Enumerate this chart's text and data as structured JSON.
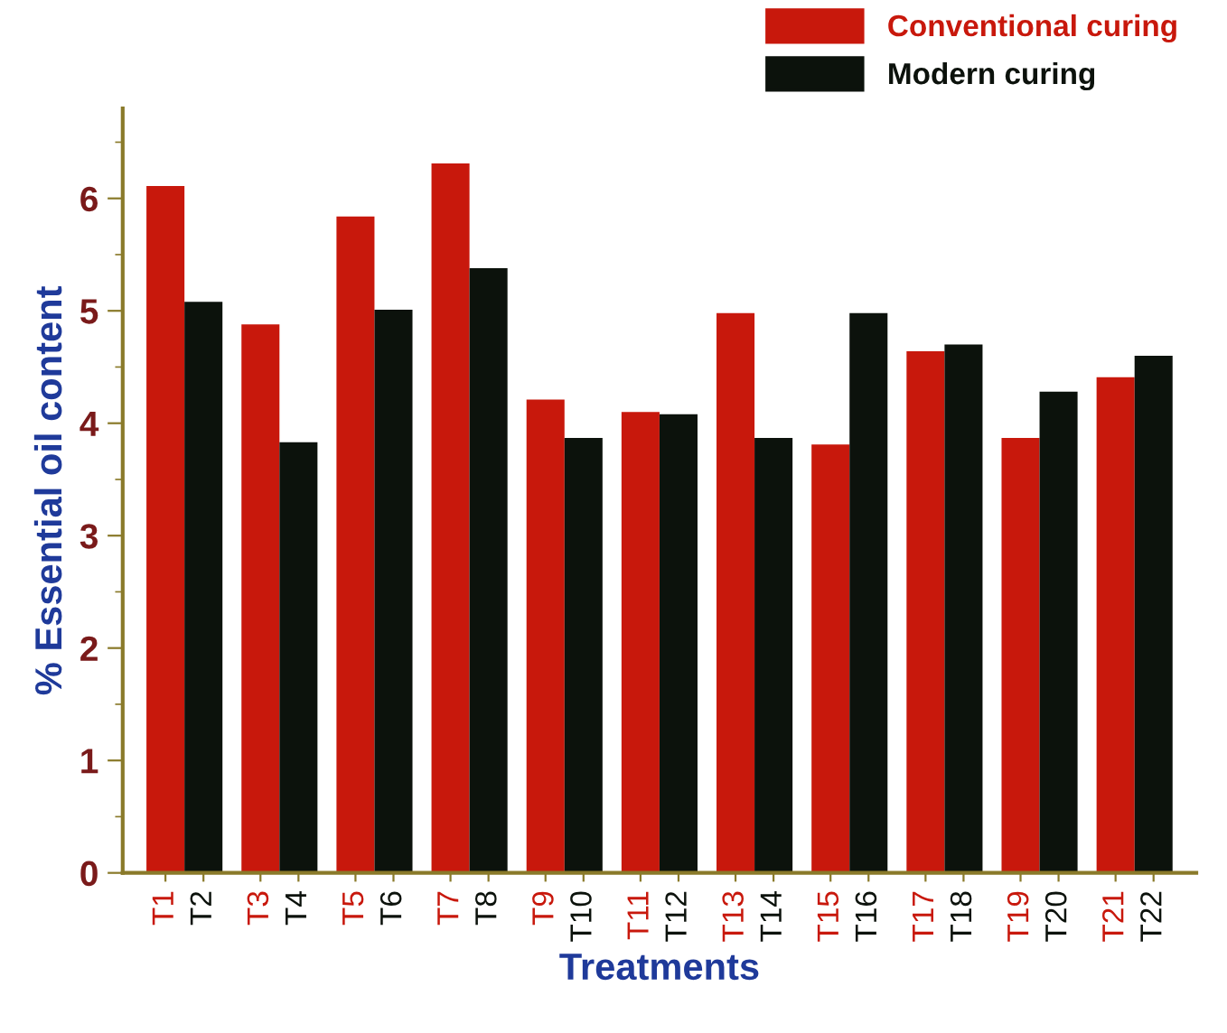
{
  "chart_data": {
    "type": "bar",
    "xlabel": "Treatments",
    "ylabel": "% Essential oil content",
    "categories": [
      "T1",
      "T2",
      "T3",
      "T4",
      "T5",
      "T6",
      "T7",
      "T8",
      "T9",
      "T10",
      "T11",
      "T12",
      "T13",
      "T14",
      "T15",
      "T16",
      "T17",
      "T18",
      "T19",
      "T20",
      "T21",
      "T22"
    ],
    "series": [
      {
        "name": "Conventional curing",
        "color": "#c8180c",
        "values": [
          6.11,
          null,
          4.88,
          null,
          5.84,
          null,
          6.31,
          null,
          4.21,
          null,
          4.1,
          null,
          4.98,
          null,
          3.81,
          null,
          4.64,
          null,
          3.87,
          null,
          4.41,
          null
        ]
      },
      {
        "name": "Modern curing",
        "color": "#0c120c",
        "values": [
          null,
          5.08,
          null,
          3.83,
          null,
          5.01,
          null,
          5.38,
          null,
          3.87,
          null,
          4.08,
          null,
          3.87,
          null,
          4.98,
          null,
          4.7,
          null,
          4.28,
          null,
          4.6
        ]
      }
    ],
    "ylim": [
      0,
      6.8
    ],
    "yticks": [
      0,
      1,
      2,
      3,
      4,
      5,
      6
    ],
    "grid": false,
    "legend": "top right"
  }
}
